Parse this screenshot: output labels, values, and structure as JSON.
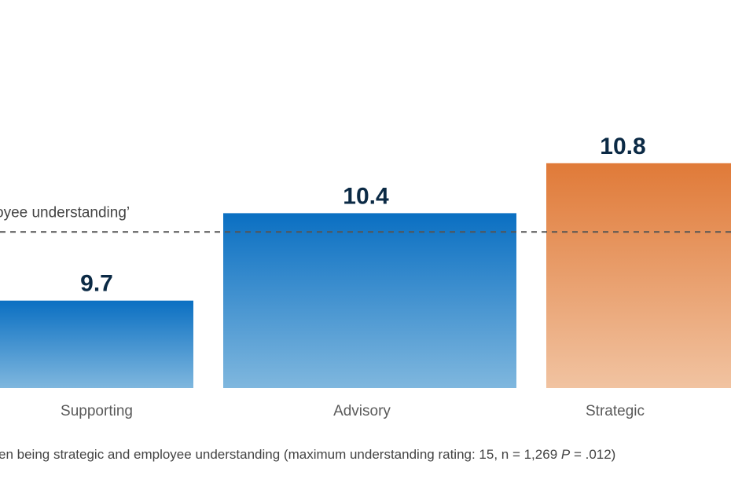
{
  "chart_data": {
    "type": "bar",
    "categories": [
      "Supporting",
      "Advisory",
      "Strategic"
    ],
    "values": [
      9.7,
      10.4,
      10.8
    ],
    "value_labels": [
      "9.7",
      "10.4",
      "10.8"
    ],
    "colors": {
      "blue_top": "#0a6fc2",
      "blue_bottom": "#7fb7de",
      "orange_top": "#e07a38",
      "orange_bottom": "#f1c3a1"
    },
    "bar_colors": [
      "blue",
      "blue",
      "orange"
    ],
    "reference_line": {
      "value": 10.25,
      "label": "oyee understanding’",
      "style": "dashed"
    },
    "ylim": [
      9.0,
      10.95
    ],
    "title": "",
    "xlabel": "",
    "ylabel": "",
    "grid": false
  },
  "footnote": {
    "text_before": "en being strategic and employee understanding (maximum understanding rating: 15, n = 1,269 ",
    "italic": "P",
    "text_after": " = .012)"
  }
}
